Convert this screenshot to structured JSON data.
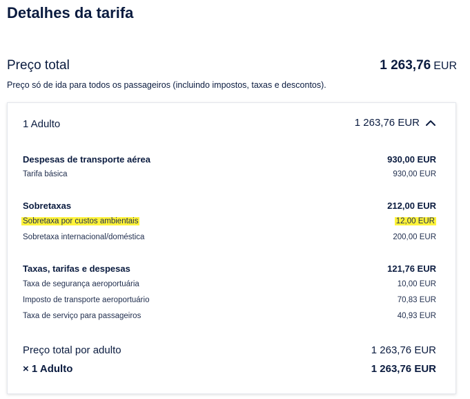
{
  "page": {
    "title": "Detalhes da tarifa",
    "total_label": "Preço total",
    "total_amount": "1 263,76",
    "total_currency": "EUR",
    "total_note": "Preço só de ida para todos os passageiros (incluindo impostos, taxas e descontos)."
  },
  "passenger": {
    "label": "1 Adulto",
    "amount": "1 263,76 EUR",
    "expanded": true,
    "groups": [
      {
        "title": "Despesas de transporte aérea",
        "amount": "930,00 EUR",
        "items": [
          {
            "label": "Tarifa básica",
            "amount": "930,00 EUR",
            "highlighted": false
          }
        ]
      },
      {
        "title": "Sobretaxas",
        "amount": "212,00 EUR",
        "items": [
          {
            "label": "Sobretaxa por custos ambientais",
            "amount": "12,00 EUR",
            "highlighted": true
          },
          {
            "label": "Sobretaxa internacional/doméstica",
            "amount": "200,00 EUR",
            "highlighted": false
          }
        ]
      },
      {
        "title": "Taxas, tarifas e despesas",
        "amount": "121,76 EUR",
        "items": [
          {
            "label": "Taxa de segurança aeroportuária",
            "amount": "10,00 EUR",
            "highlighted": false
          },
          {
            "label": "Imposto de transporte aeroportuário",
            "amount": "70,83 EUR",
            "highlighted": false
          },
          {
            "label": "Taxa de serviço para passageiros",
            "amount": "40,93 EUR",
            "highlighted": false
          }
        ]
      }
    ],
    "per_adult_label": "Preço total por adulto",
    "per_adult_amount": "1 263,76 EUR",
    "multiplier_label": "× 1 Adulto",
    "multiplier_amount": "1 263,76 EUR"
  },
  "colors": {
    "text": "#0a1b3f",
    "highlight": "#fff33a"
  },
  "icons": {
    "toggle": "chevron-up-icon"
  }
}
